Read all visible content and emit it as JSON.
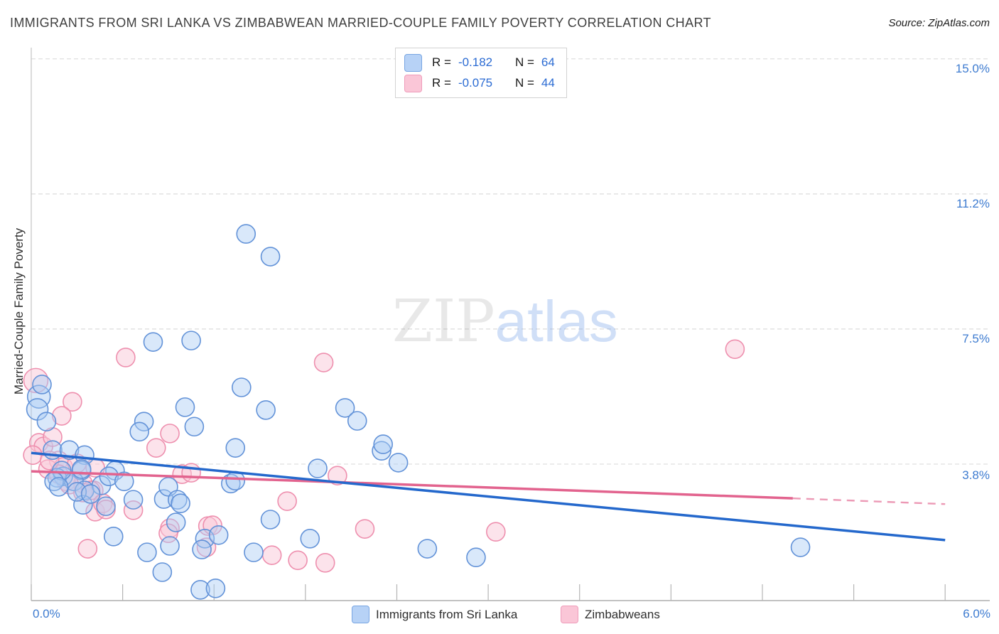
{
  "title": "IMMIGRANTS FROM SRI LANKA VS ZIMBABWEAN MARRIED-COUPLE FAMILY POVERTY CORRELATION CHART",
  "source": "Source: ZipAtlas.com",
  "watermark": {
    "zip": "ZIP",
    "atlas": "atlas"
  },
  "legend_box": {
    "rows": [
      {
        "series": "Immigrants from Sri Lanka",
        "r_label": "R =",
        "r_value": "-0.182",
        "n_label": "N =",
        "n_value": "64"
      },
      {
        "series": "Zimbabweans",
        "r_label": "R =",
        "r_value": "-0.075",
        "n_label": "N =",
        "n_value": "44"
      }
    ]
  },
  "axis": {
    "x_min_label": "0.0%",
    "x_max_label": "6.0%",
    "y_tick_labels": [
      "15.0%",
      "11.2%",
      "7.5%",
      "3.8%"
    ]
  },
  "bottom_legend": {
    "series1": "Immigrants from Sri Lanka",
    "series2": "Zimbabweans"
  },
  "chart_data": {
    "type": "scatter",
    "title": "Immigrants from Sri Lanka vs Zimbabwean Married-Couple Family Poverty",
    "xlabel": "Immigrants from Sri Lanka (%)",
    "ylabel": "Married-Couple Family Poverty",
    "xlim": [
      0,
      6
    ],
    "ylim": [
      0,
      15.6
    ],
    "x_tick_step": 0.6,
    "y_gridline_values": [
      15.0,
      11.25,
      7.5,
      3.75
    ],
    "grid": "horizontal-dashed",
    "legend_position": "bottom-center",
    "series": [
      {
        "name": "Immigrants from Sri Lanka",
        "color": "#6292d8",
        "fill": "rgba(170,203,245,0.45)",
        "R": -0.182,
        "N": 64,
        "trend": {
          "x1": 0,
          "y1": 4.06,
          "x2": 6.0,
          "y2": 1.64,
          "color": "#2468cc"
        },
        "points": [
          [
            1.41,
            10.14
          ],
          [
            1.57,
            9.51
          ],
          [
            0.8,
            7.14
          ],
          [
            1.05,
            7.18
          ],
          [
            0.05,
            5.62,
            16
          ],
          [
            0.04,
            5.27,
            15
          ],
          [
            0.07,
            5.96
          ],
          [
            0.1,
            4.93
          ],
          [
            1.38,
            5.88
          ],
          [
            1.54,
            5.25
          ],
          [
            2.06,
            5.31
          ],
          [
            2.14,
            4.95
          ],
          [
            1.34,
            4.2
          ],
          [
            2.3,
            4.12
          ],
          [
            2.41,
            3.79
          ],
          [
            1.88,
            3.63
          ],
          [
            1.31,
            3.21
          ],
          [
            1.34,
            3.29
          ],
          [
            0.14,
            4.14
          ],
          [
            0.25,
            4.14
          ],
          [
            0.35,
            4.0
          ],
          [
            0.33,
            3.57
          ],
          [
            0.21,
            3.41
          ],
          [
            0.17,
            3.37
          ],
          [
            0.28,
            3.27
          ],
          [
            0.35,
            3.02
          ],
          [
            0.46,
            3.16
          ],
          [
            0.87,
            2.78
          ],
          [
            0.34,
            2.62
          ],
          [
            0.49,
            2.58
          ],
          [
            0.74,
            4.93
          ],
          [
            0.71,
            4.65
          ],
          [
            1.07,
            4.79
          ],
          [
            1.01,
            5.33
          ],
          [
            0.2,
            3.57
          ],
          [
            0.33,
            3.61
          ],
          [
            0.55,
            3.57
          ],
          [
            0.15,
            3.27
          ],
          [
            0.18,
            3.12
          ],
          [
            0.3,
            2.98
          ],
          [
            0.39,
            2.92
          ],
          [
            0.51,
            3.41
          ],
          [
            0.61,
            3.27
          ],
          [
            0.67,
            2.76
          ],
          [
            0.9,
            3.12
          ],
          [
            0.96,
            2.76
          ],
          [
            0.98,
            2.66
          ],
          [
            0.95,
            2.13
          ],
          [
            1.14,
            1.68
          ],
          [
            1.12,
            1.38
          ],
          [
            0.54,
            1.74
          ],
          [
            0.76,
            1.3
          ],
          [
            0.91,
            1.48
          ],
          [
            0.86,
            0.75
          ],
          [
            1.11,
            0.26
          ],
          [
            1.57,
            2.21
          ],
          [
            1.23,
            1.78
          ],
          [
            1.83,
            1.68
          ],
          [
            1.46,
            1.3
          ],
          [
            2.6,
            1.4
          ],
          [
            2.92,
            1.16
          ],
          [
            5.05,
            1.44
          ],
          [
            2.31,
            4.3
          ],
          [
            1.21,
            0.3
          ]
        ]
      },
      {
        "name": "Zimbabweans",
        "color": "#ee8fae",
        "fill": "rgba(250,199,216,0.50)",
        "R": -0.075,
        "N": 44,
        "trend": {
          "x1": 0,
          "y1": 3.55,
          "x2": 5.0,
          "y2": 2.8,
          "x3": 6.0,
          "y3": 2.64,
          "color": "#e2638e",
          "dashed_after_x2": true
        },
        "points": [
          [
            0.03,
            6.07,
            17
          ],
          [
            0.62,
            6.71
          ],
          [
            1.92,
            6.57
          ],
          [
            4.62,
            6.94
          ],
          [
            0.27,
            5.48
          ],
          [
            0.2,
            5.09
          ],
          [
            0.05,
            4.34
          ],
          [
            0.08,
            4.24
          ],
          [
            0.18,
            3.85
          ],
          [
            0.21,
            3.67
          ],
          [
            0.23,
            3.27
          ],
          [
            0.34,
            3.21
          ],
          [
            0.41,
            3.02
          ],
          [
            0.42,
            2.43
          ],
          [
            0.82,
            4.2
          ],
          [
            0.91,
            4.6
          ],
          [
            0.11,
            3.61
          ],
          [
            0.18,
            3.47
          ],
          [
            0.42,
            3.65
          ],
          [
            0.25,
            3.18
          ],
          [
            0.34,
            2.96
          ],
          [
            0.39,
            3.02
          ],
          [
            0.47,
            2.66
          ],
          [
            0.49,
            2.49
          ],
          [
            0.67,
            2.47
          ],
          [
            0.99,
            3.47
          ],
          [
            1.05,
            3.51
          ],
          [
            0.91,
            1.97
          ],
          [
            0.9,
            1.83
          ],
          [
            1.16,
            2.03
          ],
          [
            0.37,
            1.4
          ],
          [
            1.19,
            2.05
          ],
          [
            1.68,
            2.72
          ],
          [
            1.15,
            1.44
          ],
          [
            1.58,
            1.22
          ],
          [
            1.75,
            1.08
          ],
          [
            1.93,
            1.01
          ],
          [
            2.19,
            1.95
          ],
          [
            3.05,
            1.87
          ],
          [
            2.01,
            3.43
          ],
          [
            0.01,
            4.0
          ],
          [
            0.12,
            3.85
          ],
          [
            0.3,
            3.77
          ],
          [
            0.14,
            4.5
          ]
        ]
      }
    ]
  }
}
